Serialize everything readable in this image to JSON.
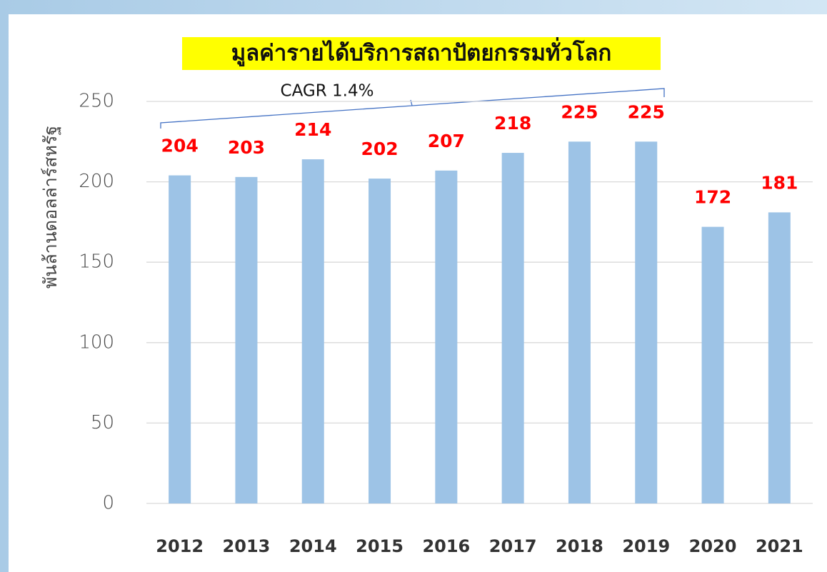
{
  "chart_data": {
    "type": "bar",
    "title": "มูลค่ารายได้บริการสถาปัตยกรรมทั่วโลก",
    "y_label": "พันล้านดอลล่าร์สหรัฐ",
    "annotation": "CAGR 1.4%",
    "categories": [
      "2012",
      "2013",
      "2014",
      "2015",
      "2016",
      "2017",
      "2018",
      "2019",
      "2020",
      "2021"
    ],
    "values": [
      204,
      203,
      214,
      202,
      207,
      218,
      225,
      225,
      172,
      181
    ],
    "color": "#9dc3e6",
    "label_color": "#ff0000",
    "ylim": [
      0,
      250
    ],
    "yticks": [
      0,
      50,
      100,
      150,
      200,
      250
    ],
    "grid": true
  }
}
